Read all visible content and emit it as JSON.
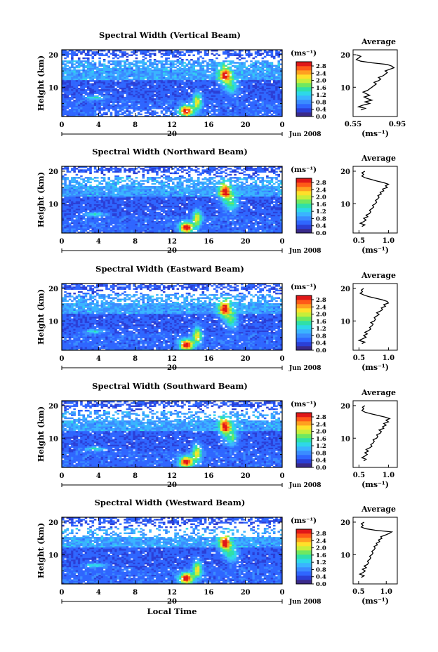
{
  "chart_data": [
    {
      "type": "heatmap",
      "title": "Spectral Width (Vertical Beam)",
      "ylabel": "Height (km)",
      "x_ticks": [
        "0",
        "4",
        "8",
        "12",
        "16",
        "20",
        "0"
      ],
      "y_ticks": [
        "20",
        "10"
      ],
      "date_day": "20",
      "date_label": "Jun 2008",
      "colorbar": {
        "unit": "(ms⁻¹)",
        "ticks": [
          "2.8",
          "2.4",
          "2.0",
          "1.6",
          "1.2",
          "0.8",
          "0.4",
          "0.0"
        ]
      },
      "profile": {
        "title": "Average",
        "xlabel": "(ms⁻¹)",
        "x_ticks": [
          "0.55",
          "0.95"
        ],
        "y_ticks": [
          "20",
          "10"
        ],
        "xlim": [
          0.55,
          0.95
        ],
        "points": [
          [
            0.62,
            3
          ],
          [
            0.66,
            3.5
          ],
          [
            0.6,
            4
          ],
          [
            0.64,
            4.5
          ],
          [
            0.7,
            5
          ],
          [
            0.66,
            5.5
          ],
          [
            0.72,
            6
          ],
          [
            0.68,
            6.5
          ],
          [
            0.65,
            7
          ],
          [
            0.7,
            7.5
          ],
          [
            0.67,
            8
          ],
          [
            0.64,
            8.5
          ],
          [
            0.68,
            9
          ],
          [
            0.7,
            9.5
          ],
          [
            0.72,
            10
          ],
          [
            0.74,
            10.5
          ],
          [
            0.76,
            11
          ],
          [
            0.74,
            11.5
          ],
          [
            0.78,
            12
          ],
          [
            0.8,
            12.5
          ],
          [
            0.78,
            13
          ],
          [
            0.82,
            13.5
          ],
          [
            0.84,
            14
          ],
          [
            0.86,
            14.5
          ],
          [
            0.84,
            15
          ],
          [
            0.88,
            15.5
          ],
          [
            0.92,
            16
          ],
          [
            0.9,
            16.5
          ],
          [
            0.86,
            17
          ],
          [
            0.72,
            17.5
          ],
          [
            0.62,
            18
          ],
          [
            0.58,
            18.5
          ],
          [
            0.6,
            19
          ],
          [
            0.62,
            19.5
          ],
          [
            0.58,
            20
          ]
        ]
      }
    },
    {
      "type": "heatmap",
      "title": "Spectral Width (Northward Beam)",
      "ylabel": "Height (km)",
      "x_ticks": [
        "0",
        "4",
        "8",
        "12",
        "16",
        "20",
        "0"
      ],
      "y_ticks": [
        "20",
        "10"
      ],
      "date_day": "20",
      "date_label": "Jun 2008",
      "colorbar": {
        "unit": "(ms⁻¹)",
        "ticks": [
          "2.8",
          "2.4",
          "2.0",
          "1.6",
          "1.2",
          "0.8",
          "0.4",
          "0.0"
        ]
      },
      "profile": {
        "title": "Average",
        "xlabel": "(ms⁻¹)",
        "x_ticks": [
          "0.5",
          "1.0"
        ],
        "y_ticks": [
          "20",
          "10"
        ],
        "xlim": [
          0.4,
          1.15
        ],
        "points": [
          [
            0.55,
            3
          ],
          [
            0.6,
            3.5
          ],
          [
            0.52,
            4
          ],
          [
            0.58,
            4.5
          ],
          [
            0.62,
            5
          ],
          [
            0.58,
            5.5
          ],
          [
            0.65,
            6
          ],
          [
            0.62,
            6.5
          ],
          [
            0.68,
            7
          ],
          [
            0.7,
            7.5
          ],
          [
            0.68,
            8
          ],
          [
            0.72,
            8.5
          ],
          [
            0.75,
            9
          ],
          [
            0.73,
            9.5
          ],
          [
            0.78,
            10
          ],
          [
            0.8,
            10.5
          ],
          [
            0.78,
            11
          ],
          [
            0.82,
            11.5
          ],
          [
            0.84,
            12
          ],
          [
            0.82,
            12.5
          ],
          [
            0.88,
            13
          ],
          [
            0.86,
            13.5
          ],
          [
            0.92,
            14
          ],
          [
            0.9,
            14.5
          ],
          [
            0.98,
            15
          ],
          [
            0.95,
            15.5
          ],
          [
            1.0,
            16
          ],
          [
            0.92,
            16.5
          ],
          [
            0.8,
            17
          ],
          [
            0.7,
            17.5
          ],
          [
            0.6,
            18
          ],
          [
            0.55,
            18.5
          ],
          [
            0.58,
            19
          ],
          [
            0.55,
            19.5
          ],
          [
            0.6,
            20
          ]
        ]
      }
    },
    {
      "type": "heatmap",
      "title": "Spectral Width (Eastward Beam)",
      "ylabel": "Height (km)",
      "x_ticks": [
        "0",
        "4",
        "8",
        "12",
        "16",
        "20",
        "0"
      ],
      "y_ticks": [
        "20",
        "10"
      ],
      "date_day": "20",
      "date_label": "Jun 2008",
      "colorbar": {
        "unit": "(ms⁻¹)",
        "ticks": [
          "2.8",
          "2.4",
          "2.0",
          "1.6",
          "1.2",
          "0.8",
          "0.4",
          "0.0"
        ]
      },
      "profile": {
        "title": "Average",
        "xlabel": "(ms⁻¹)",
        "x_ticks": [
          "0.5",
          "1.0"
        ],
        "y_ticks": [
          "20",
          "10"
        ],
        "xlim": [
          0.4,
          1.15
        ],
        "points": [
          [
            0.55,
            3
          ],
          [
            0.6,
            3.5
          ],
          [
            0.5,
            4
          ],
          [
            0.56,
            4.5
          ],
          [
            0.62,
            5
          ],
          [
            0.58,
            5.5
          ],
          [
            0.64,
            6
          ],
          [
            0.6,
            6.5
          ],
          [
            0.66,
            7
          ],
          [
            0.7,
            7.5
          ],
          [
            0.68,
            8
          ],
          [
            0.72,
            8.5
          ],
          [
            0.74,
            9
          ],
          [
            0.7,
            9.5
          ],
          [
            0.76,
            10
          ],
          [
            0.78,
            10.5
          ],
          [
            0.76,
            11
          ],
          [
            0.8,
            11.5
          ],
          [
            0.84,
            12
          ],
          [
            0.8,
            12.5
          ],
          [
            0.86,
            13
          ],
          [
            0.9,
            13.5
          ],
          [
            0.88,
            14
          ],
          [
            0.95,
            14.5
          ],
          [
            0.92,
            15
          ],
          [
            1.0,
            15.5
          ],
          [
            0.98,
            16
          ],
          [
            0.9,
            16.5
          ],
          [
            0.78,
            17
          ],
          [
            0.66,
            17.5
          ],
          [
            0.58,
            18
          ],
          [
            0.52,
            18.5
          ],
          [
            0.56,
            19
          ],
          [
            0.54,
            19.5
          ],
          [
            0.58,
            20
          ]
        ]
      }
    },
    {
      "type": "heatmap",
      "title": "Spectral Width (Southward Beam)",
      "ylabel": "Height (km)",
      "x_ticks": [
        "0",
        "4",
        "8",
        "12",
        "16",
        "20",
        "0"
      ],
      "y_ticks": [
        "20",
        "10"
      ],
      "date_day": "20",
      "date_label": "Jun 2008",
      "colorbar": {
        "unit": "(ms⁻¹)",
        "ticks": [
          "2.8",
          "2.4",
          "2.0",
          "1.6",
          "1.2",
          "0.8",
          "0.4",
          "0.0"
        ]
      },
      "profile": {
        "title": "Average",
        "xlabel": "(ms⁻¹)",
        "x_ticks": [
          "0.5",
          "1.0"
        ],
        "y_ticks": [
          "20",
          "10"
        ],
        "xlim": [
          0.4,
          1.15
        ],
        "points": [
          [
            0.58,
            3
          ],
          [
            0.62,
            3.5
          ],
          [
            0.55,
            4
          ],
          [
            0.6,
            4.5
          ],
          [
            0.64,
            5
          ],
          [
            0.6,
            5.5
          ],
          [
            0.66,
            6
          ],
          [
            0.62,
            6.5
          ],
          [
            0.68,
            7
          ],
          [
            0.72,
            7.5
          ],
          [
            0.7,
            8
          ],
          [
            0.74,
            8.5
          ],
          [
            0.76,
            9
          ],
          [
            0.74,
            9.5
          ],
          [
            0.8,
            10
          ],
          [
            0.82,
            10.5
          ],
          [
            0.8,
            11
          ],
          [
            0.86,
            11.5
          ],
          [
            0.88,
            12
          ],
          [
            0.84,
            12.5
          ],
          [
            0.92,
            13
          ],
          [
            0.9,
            13.5
          ],
          [
            0.96,
            14
          ],
          [
            0.92,
            14.5
          ],
          [
            1.0,
            15
          ],
          [
            0.96,
            15.5
          ],
          [
            1.02,
            16
          ],
          [
            0.94,
            16.5
          ],
          [
            0.82,
            17
          ],
          [
            0.7,
            17.5
          ],
          [
            0.6,
            18
          ],
          [
            0.55,
            18.5
          ],
          [
            0.58,
            19
          ],
          [
            0.56,
            19.5
          ],
          [
            0.6,
            20
          ]
        ]
      }
    },
    {
      "type": "heatmap",
      "title": "Spectral Width (Westward Beam)",
      "ylabel": "Height (km)",
      "x_ticks": [
        "0",
        "4",
        "8",
        "12",
        "16",
        "20",
        "0"
      ],
      "y_ticks": [
        "20",
        "10"
      ],
      "date_day": "20",
      "date_label": "Jun 2008",
      "xlabel": "Local Time",
      "colorbar": {
        "unit": "(ms⁻¹)",
        "ticks": [
          "2.8",
          "2.4",
          "2.0",
          "1.6",
          "1.2",
          "0.8",
          "0.4",
          "0.0"
        ]
      },
      "profile": {
        "title": "Average",
        "xlabel": "(ms⁻¹)",
        "x_ticks": [
          "0.5",
          "1.0"
        ],
        "y_ticks": [
          "20",
          "10"
        ],
        "xlim": [
          0.4,
          1.2
        ],
        "points": [
          [
            0.55,
            3
          ],
          [
            0.6,
            3.5
          ],
          [
            0.52,
            4
          ],
          [
            0.58,
            4.5
          ],
          [
            0.62,
            5
          ],
          [
            0.57,
            5.5
          ],
          [
            0.64,
            6
          ],
          [
            0.6,
            6.5
          ],
          [
            0.66,
            7
          ],
          [
            0.68,
            7.5
          ],
          [
            0.66,
            8
          ],
          [
            0.7,
            8.5
          ],
          [
            0.72,
            9
          ],
          [
            0.7,
            9.5
          ],
          [
            0.74,
            10
          ],
          [
            0.76,
            10.5
          ],
          [
            0.74,
            11
          ],
          [
            0.78,
            11.5
          ],
          [
            0.8,
            12
          ],
          [
            0.78,
            12.5
          ],
          [
            0.84,
            13
          ],
          [
            0.82,
            13.5
          ],
          [
            0.88,
            14
          ],
          [
            0.86,
            14.5
          ],
          [
            0.92,
            15
          ],
          [
            0.9,
            15.5
          ],
          [
            0.98,
            16
          ],
          [
            1.05,
            16.5
          ],
          [
            1.1,
            17
          ],
          [
            0.8,
            17.5
          ],
          [
            0.62,
            18
          ],
          [
            0.55,
            18.5
          ],
          [
            0.58,
            19
          ],
          [
            0.55,
            19.5
          ],
          [
            0.6,
            20
          ]
        ]
      }
    }
  ],
  "colormap": [
    "#3a2a8a",
    "#2b3fd6",
    "#2f66ff",
    "#3a8cff",
    "#3ab4ff",
    "#2ed8e8",
    "#2fe0a8",
    "#6fe860",
    "#c8ee3a",
    "#ffe02a",
    "#ffa020",
    "#ff5a18",
    "#e01818"
  ],
  "colors": {
    "axis": "#000000",
    "gap": "#ffffff",
    "profile_line": "#000000"
  }
}
